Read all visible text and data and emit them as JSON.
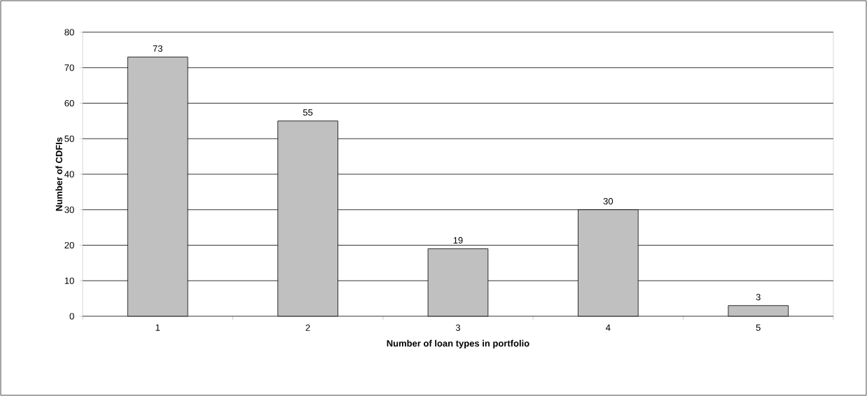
{
  "chart_data": {
    "type": "bar",
    "xlabel": "Number of loan types in portfolio",
    "ylabel": "Number of CDFIs",
    "categories": [
      "1",
      "2",
      "3",
      "4",
      "5"
    ],
    "values": [
      73,
      55,
      19,
      30,
      3
    ],
    "color": "#c0c0c0",
    "ylim": [
      0,
      80
    ],
    "yticks": [
      0,
      10,
      20,
      30,
      40,
      50,
      60,
      70,
      80
    ],
    "grid": "y",
    "data_labels": true
  }
}
